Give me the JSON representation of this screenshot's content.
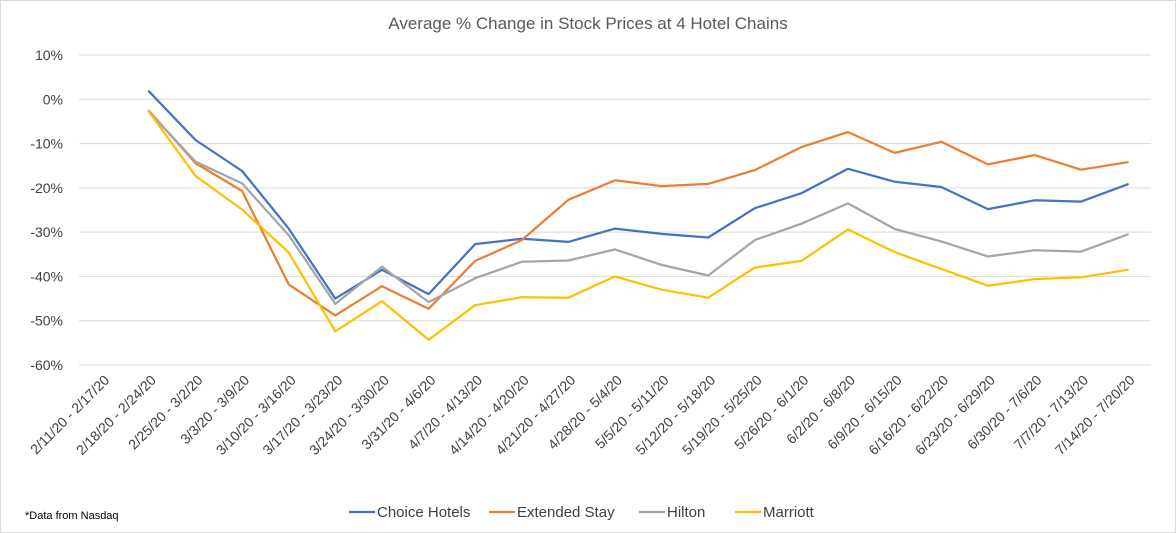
{
  "chart_data": {
    "type": "line",
    "title": "Average % Change in Stock Prices at 4 Hotel Chains",
    "xlabel": "",
    "ylabel": "",
    "ylim": [
      -60,
      10
    ],
    "y_ticks": [
      "10%",
      "0%",
      "-10%",
      "-20%",
      "-30%",
      "-40%",
      "-50%",
      "-60%"
    ],
    "grid": true,
    "legend_position": "bottom",
    "note": "*Data  from Nasdaq",
    "categories": [
      "2/11/20 - 2/17/20",
      "2/18/20 - 2/24/20",
      "2/25/20 - 3/2/20",
      "3/3/20 - 3/9/20",
      "3/10/20 - 3/16/20",
      "3/17/20 - 3/23/20",
      "3/24/20 - 3/30/20",
      "3/31/20 - 4/6/20",
      "4/7/20 - 4/13/20",
      "4/14/20 - 4/20/20",
      "4/21/20 - 4/27/20",
      "4/28/20 - 5/4/20",
      "5/5/20 - 5/11/20",
      "5/12/20 - 5/18/20",
      "5/19/20 - 5/25/20",
      "5/26/20 - 6/1/20",
      "6/2/20 - 6/8/20",
      "6/9/20 - 6/15/20",
      "6/16/20 - 6/22/20",
      "6/23/20 - 6/29/20",
      "6/30/20 - 7/6/20",
      "7/7/20 - 7/13/20",
      "7/14/20 - 7/20/20"
    ],
    "series": [
      {
        "name": "Choice Hotels",
        "color": "#4472c4",
        "values": [
          null,
          1.8,
          -9.2,
          -16.2,
          -29.2,
          -45,
          -38.5,
          -44,
          -32.7,
          -31.5,
          -32.2,
          -29.2,
          -30.4,
          -31.2,
          -24.6,
          -21.2,
          -15.7,
          -18.6,
          -19.8,
          -24.8,
          -22.8,
          -23.1,
          -19.2
        ]
      },
      {
        "name": "Extended Stay",
        "color": "#ed7d31",
        "values": [
          null,
          -2.6,
          -14.4,
          -20.7,
          -41.8,
          -48.8,
          -42.2,
          -47.3,
          -36.5,
          -31.8,
          -22.7,
          -18.3,
          -19.6,
          -19.1,
          -16,
          -10.8,
          -7.4,
          -12.1,
          -9.6,
          -14.7,
          -12.6,
          -15.9,
          -14.2
        ]
      },
      {
        "name": "Hilton",
        "color": "#a5a5a5",
        "values": [
          null,
          -2.8,
          -14.1,
          -19,
          -30.7,
          -46.2,
          -37.8,
          -45.8,
          -40.4,
          -36.7,
          -36.4,
          -33.9,
          -37.4,
          -39.8,
          -31.8,
          -28.1,
          -23.5,
          -29.3,
          -32.1,
          -35.5,
          -34.1,
          -34.4,
          -30.5
        ]
      },
      {
        "name": "Marriott",
        "color": "#ffc000",
        "values": [
          null,
          -2.8,
          -17.3,
          -24.9,
          -34.6,
          -52.4,
          -45.6,
          -54.3,
          -46.5,
          -44.7,
          -44.8,
          -40,
          -43,
          -44.8,
          -38,
          -36.5,
          -29.4,
          -34.5,
          -38.3,
          -42.1,
          -40.6,
          -40.2,
          -38.5
        ]
      }
    ]
  }
}
